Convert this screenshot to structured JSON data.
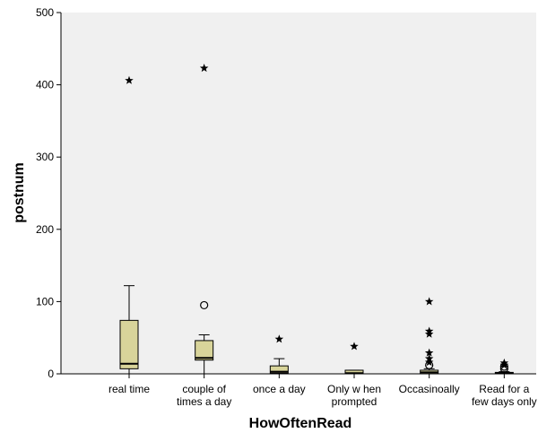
{
  "chart_data": {
    "type": "boxplot",
    "xlabel": "HowOftenRead",
    "ylabel": "postnum",
    "ylim": [
      0,
      500
    ],
    "yticks": [
      0,
      100,
      200,
      300,
      400,
      500
    ],
    "grid": false,
    "colors": {
      "plot_bg": "#f0f0f0",
      "box_fill": "#d8d49a",
      "outline": "#000000"
    },
    "categories": [
      {
        "label_lines": [
          "real time"
        ],
        "q1": 7,
        "median": 14,
        "q3": 74,
        "wlow": 0,
        "whigh": 122,
        "outliers_circle": [],
        "outliers_star": [
          406
        ]
      },
      {
        "label_lines": [
          "couple of",
          "times a day"
        ],
        "q1": 19,
        "median": 22,
        "q3": 46,
        "wlow": 0,
        "whigh": 54,
        "outliers_circle": [
          95
        ],
        "outliers_star": [
          423
        ]
      },
      {
        "label_lines": [
          "once a day"
        ],
        "q1": 1,
        "median": 3,
        "q3": 11,
        "wlow": 0,
        "whigh": 21,
        "outliers_circle": [],
        "outliers_star": [
          48
        ]
      },
      {
        "label_lines": [
          "Only w hen",
          "prompted"
        ],
        "q1": 0,
        "median": 1,
        "q3": 5,
        "wlow": 0,
        "whigh": 5,
        "outliers_circle": [],
        "outliers_star": [
          38
        ]
      },
      {
        "label_lines": [
          "Occasinoally"
        ],
        "q1": 0,
        "median": 2,
        "q3": 5,
        "wlow": 0,
        "whigh": 7,
        "outliers_circle": [
          12
        ],
        "outliers_star": [
          100,
          59,
          55,
          29,
          21,
          16
        ]
      },
      {
        "label_lines": [
          "Read for a",
          "few  days only"
        ],
        "q1": 0,
        "median": 1,
        "q3": 2,
        "wlow": 0,
        "whigh": 3,
        "outliers_circle": [
          7,
          10
        ],
        "outliers_star": [
          15,
          12
        ]
      }
    ]
  }
}
